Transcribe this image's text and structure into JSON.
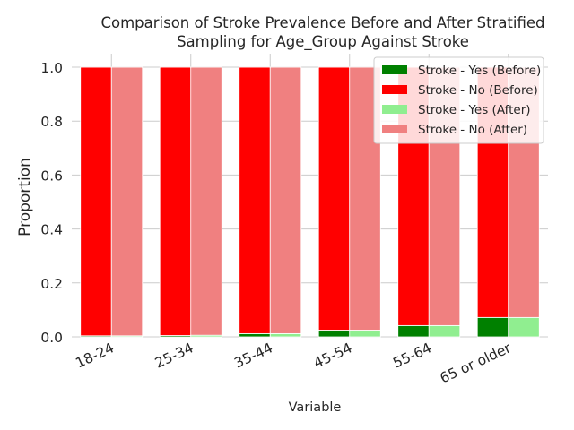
{
  "chart_data": {
    "type": "bar",
    "stacked": true,
    "title_lines": [
      "Comparison of Stroke Prevalence Before and After Stratified",
      "Sampling for Age_Group Against Stroke"
    ],
    "xlabel": "Variable",
    "ylabel": "Proportion",
    "ylim": [
      0,
      1.05
    ],
    "yticks": [
      0.0,
      0.2,
      0.4,
      0.6,
      0.8,
      1.0
    ],
    "ytick_labels": [
      "0.0",
      "0.2",
      "0.4",
      "0.6",
      "0.8",
      "1.0"
    ],
    "grid": true,
    "legend_position": "top-right",
    "categories": [
      "18-24",
      "25-34",
      "35-44",
      "45-54",
      "55-64",
      "65 or older"
    ],
    "series": [
      {
        "name": "Stroke - Yes (Before)",
        "group": "before",
        "color": "#008000",
        "values": [
          0.004,
          0.005,
          0.012,
          0.025,
          0.042,
          0.072
        ]
      },
      {
        "name": "Stroke - No (Before)",
        "group": "before",
        "color": "#ff0000",
        "values": [
          0.996,
          0.995,
          0.988,
          0.975,
          0.958,
          0.928
        ]
      },
      {
        "name": "Stroke - Yes (After)",
        "group": "after",
        "color": "#90ee90",
        "values": [
          0.004,
          0.006,
          0.012,
          0.025,
          0.042,
          0.072
        ]
      },
      {
        "name": "Stroke - No (After)",
        "group": "after",
        "color": "#f08080",
        "values": [
          0.996,
          0.994,
          0.988,
          0.975,
          0.958,
          0.928
        ]
      }
    ]
  }
}
